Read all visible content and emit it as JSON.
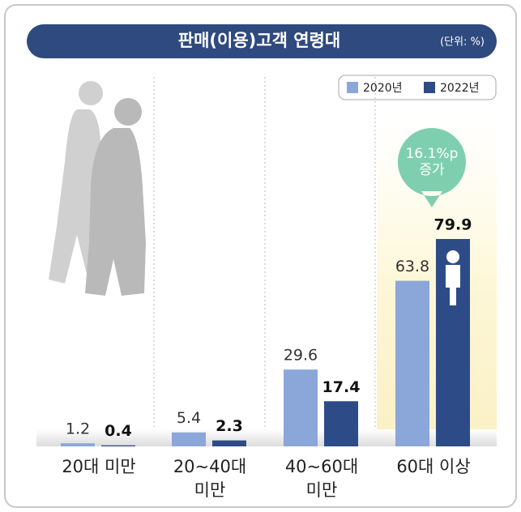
{
  "chart_data": {
    "type": "bar",
    "title": "판매(이용)고객 연령대",
    "subtitle": "(단위: %)",
    "categories": [
      "20대 미만",
      "20~40대\n미만",
      "40~60대\n미만",
      "60대 이상"
    ],
    "series": [
      {
        "name": "2020년",
        "color": "#8ba7d9",
        "values": [
          1.2,
          5.4,
          29.6,
          63.8
        ]
      },
      {
        "name": "2022년",
        "color": "#2d4b87",
        "values": [
          0.4,
          2.3,
          17.4,
          79.9
        ]
      }
    ],
    "annotation": "16.1%p\n증가"
  }
}
